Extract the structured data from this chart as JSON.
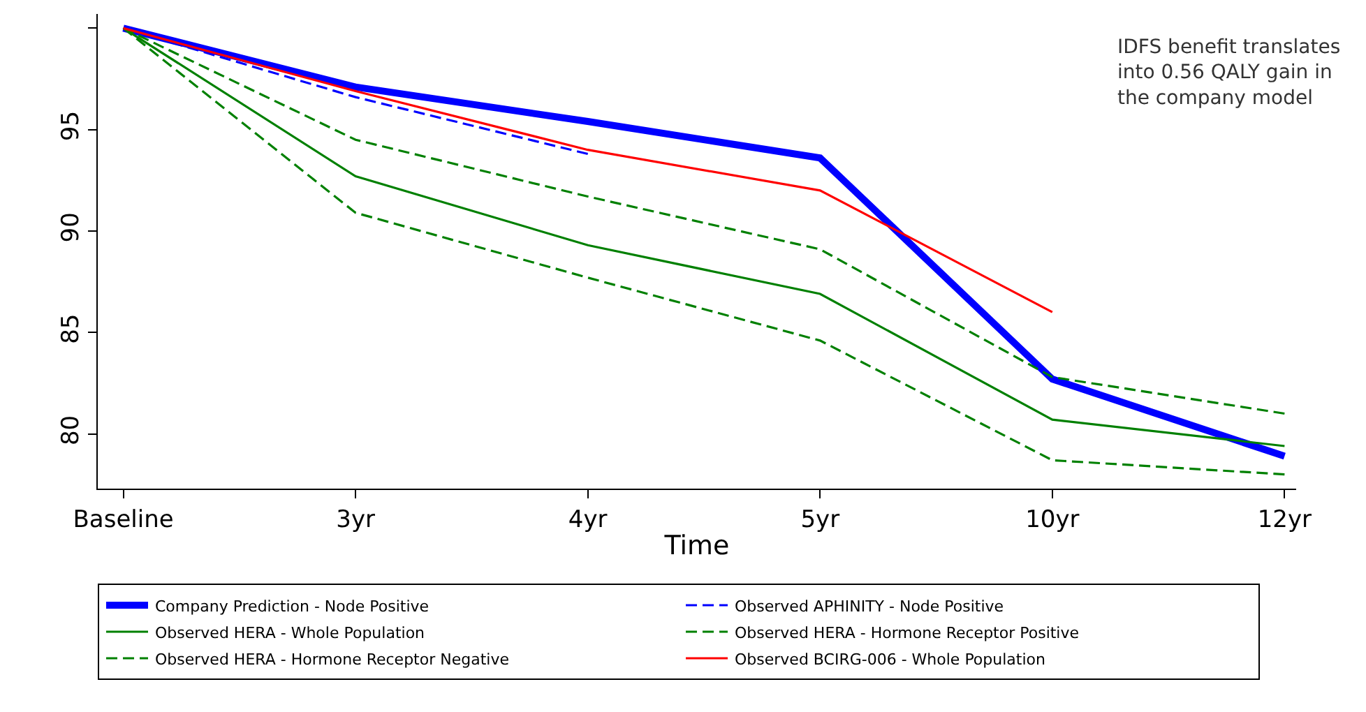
{
  "chart_data": {
    "type": "line",
    "xlabel": "Time",
    "categories": [
      "Baseline",
      "3yr",
      "4yr",
      "5yr",
      "10yr",
      "12yr"
    ],
    "ylim": [
      77.3,
      100.7
    ],
    "yticks": [
      80,
      85,
      90,
      95,
      {
        "value": 100,
        "label": null
      }
    ],
    "grid": false,
    "legend": "bottom",
    "marker": "none",
    "annotations": [
      "IDFS benefit translates\ninto 0.56 QALY gain in\nthe company model"
    ],
    "series": [
      {
        "name": "Company Prediction - Node Positive",
        "color": "#0000ff",
        "line_style": "solid",
        "values": [
          100,
          97.1,
          95.4,
          93.6,
          82.7,
          78.9
        ]
      },
      {
        "name": "Observed APHINITY - Node Positive",
        "color": "#0000ff",
        "line_style": "dashed",
        "values": [
          100,
          96.6,
          93.8,
          null,
          null,
          null
        ]
      },
      {
        "name": "Observed HERA - Whole Population",
        "color": "#008000",
        "line_style": "solid",
        "values": [
          100,
          92.7,
          89.3,
          86.9,
          80.7,
          79.4
        ]
      },
      {
        "name": "Observed HERA - Hormone Receptor Positive",
        "color": "#008000",
        "line_style": "dashed",
        "values": [
          100,
          94.5,
          91.7,
          89.1,
          82.8,
          81.0
        ]
      },
      {
        "name": "Observed HERA - Hormone Receptor Negative",
        "color": "#008000",
        "line_style": "dashed",
        "values": [
          100,
          90.9,
          87.7,
          84.6,
          78.7,
          78.0
        ]
      },
      {
        "name": "Observed BCIRG-006 - Whole Population",
        "color": "#ff0000",
        "line_style": "solid",
        "values": [
          100,
          96.9,
          94.0,
          92.0,
          86.0,
          null
        ]
      }
    ]
  }
}
